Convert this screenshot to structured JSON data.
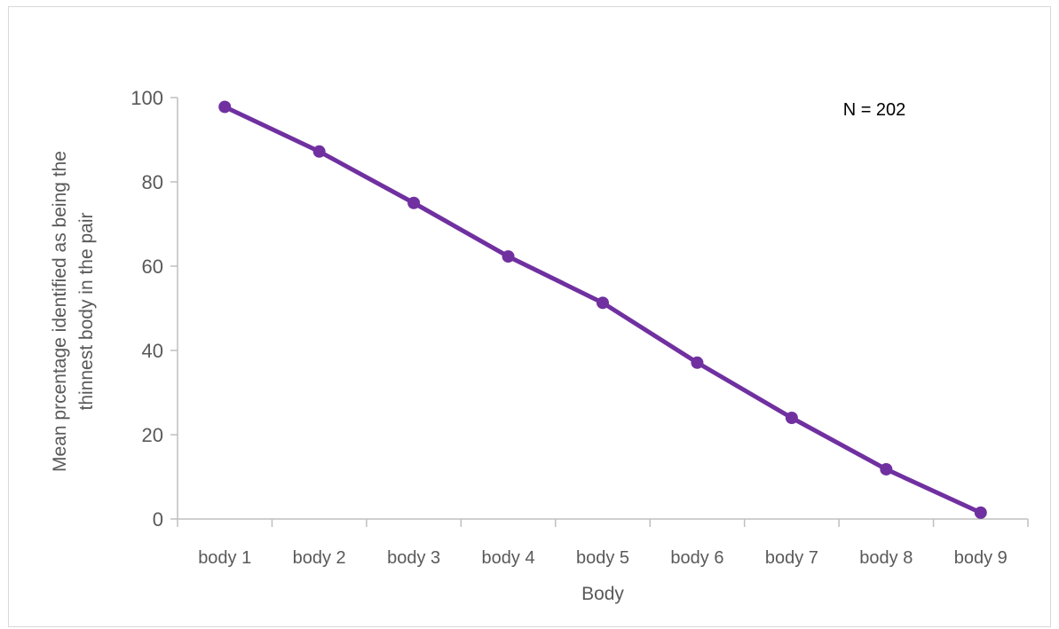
{
  "chart_data": {
    "type": "line",
    "categories": [
      "body 1",
      "body 2",
      "body 3",
      "body 4",
      "body 5",
      "body 6",
      "body 7",
      "body 8",
      "body 9"
    ],
    "series": [
      {
        "values": [
          97.8,
          87.2,
          75,
          62.3,
          51.3,
          37.1,
          24,
          11.8,
          1.5
        ]
      }
    ],
    "title": "",
    "xlabel": "Body",
    "ylabel_lines": [
      "Mean prcentage identified as being the",
      "thinnest body in the pair"
    ],
    "ylim": [
      0,
      100
    ],
    "yticks": [
      0,
      20,
      40,
      60,
      80,
      100
    ],
    "annotation": "N = 202",
    "grid": false,
    "legend": "none",
    "colors": {
      "line": "#7030a0",
      "axis": "#bfbfbf",
      "text": "#595959"
    }
  }
}
